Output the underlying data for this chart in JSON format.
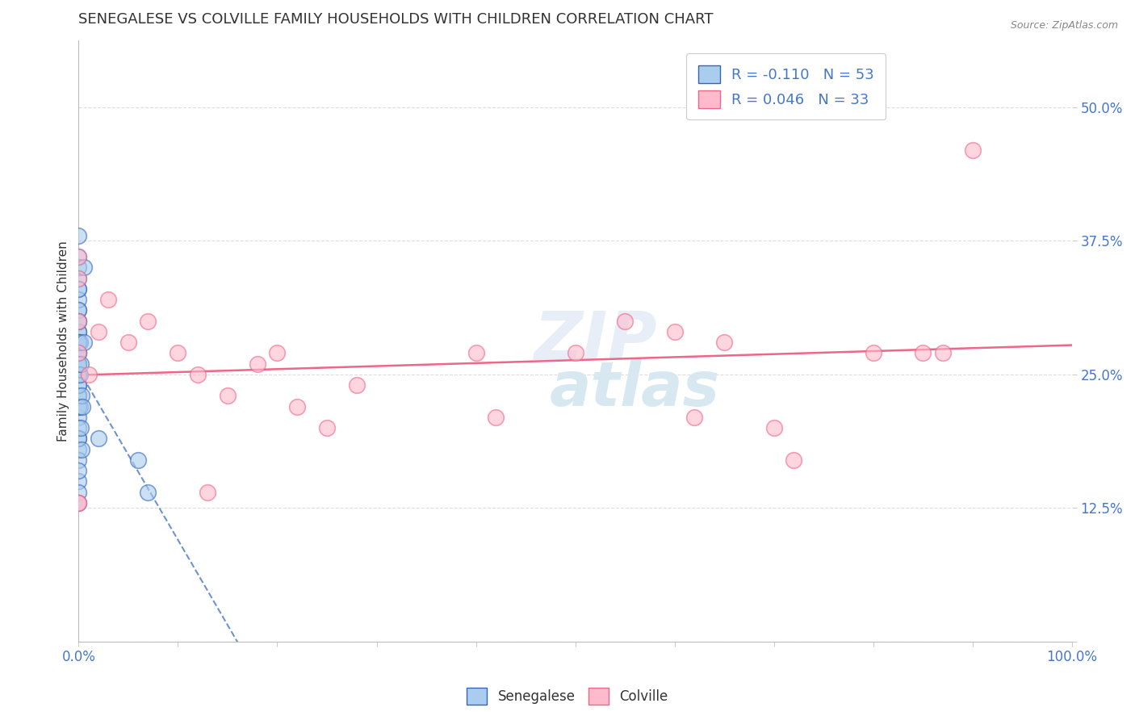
{
  "title": "SENEGALESE VS COLVILLE FAMILY HOUSEHOLDS WITH CHILDREN CORRELATION CHART",
  "source_text": "Source: ZipAtlas.com",
  "ylabel": "Family Households with Children",
  "xlim": [
    0.0,
    1.0
  ],
  "ylim": [
    0.0,
    0.5625
  ],
  "yticks": [
    0.0,
    0.125,
    0.25,
    0.375,
    0.5
  ],
  "ytick_labels": [
    "",
    "12.5%",
    "25.0%",
    "37.5%",
    "50.0%"
  ],
  "legend_entry1": "R = -0.110   N = 53",
  "legend_entry2": "R = 0.046   N = 33",
  "legend_label1": "Senegalese",
  "legend_label2": "Colville",
  "color_senegalese": "#AACCEE",
  "color_colville": "#FFBBCC",
  "trendline_senegalese_color": "#3366BB",
  "trendline_colville_color": "#EE6688",
  "background_color": "#FFFFFF",
  "grid_color": "#DDDDDD",
  "title_fontsize": 13,
  "axis_label_fontsize": 11,
  "tick_fontsize": 12,
  "senegalese_x": [
    0.0,
    0.0,
    0.0,
    0.0,
    0.0,
    0.0,
    0.0,
    0.0,
    0.0,
    0.0,
    0.0,
    0.0,
    0.0,
    0.0,
    0.0,
    0.0,
    0.0,
    0.0,
    0.0,
    0.0,
    0.0,
    0.0,
    0.0,
    0.0,
    0.0,
    0.0,
    0.0,
    0.0,
    0.0,
    0.0,
    0.0,
    0.0,
    0.0,
    0.0,
    0.0,
    0.0,
    0.0,
    0.0,
    0.0,
    0.0,
    0.001,
    0.001,
    0.001,
    0.002,
    0.002,
    0.003,
    0.003,
    0.004,
    0.005,
    0.005,
    0.02,
    0.06,
    0.07
  ],
  "senegalese_y": [
    0.29,
    0.31,
    0.27,
    0.34,
    0.36,
    0.33,
    0.28,
    0.26,
    0.32,
    0.3,
    0.25,
    0.23,
    0.35,
    0.38,
    0.29,
    0.27,
    0.24,
    0.22,
    0.21,
    0.2,
    0.18,
    0.17,
    0.15,
    0.14,
    0.26,
    0.23,
    0.19,
    0.16,
    0.13,
    0.28,
    0.25,
    0.22,
    0.19,
    0.28,
    0.31,
    0.27,
    0.24,
    0.3,
    0.33,
    0.26,
    0.25,
    0.22,
    0.28,
    0.26,
    0.2,
    0.23,
    0.18,
    0.22,
    0.35,
    0.28,
    0.19,
    0.17,
    0.14
  ],
  "colville_x": [
    0.0,
    0.0,
    0.0,
    0.0,
    0.0,
    0.0,
    0.01,
    0.02,
    0.03,
    0.05,
    0.07,
    0.1,
    0.12,
    0.13,
    0.15,
    0.18,
    0.2,
    0.22,
    0.25,
    0.28,
    0.4,
    0.42,
    0.5,
    0.55,
    0.6,
    0.62,
    0.65,
    0.7,
    0.72,
    0.8,
    0.85,
    0.87,
    0.9
  ],
  "colville_y": [
    0.3,
    0.27,
    0.36,
    0.34,
    0.13,
    0.13,
    0.25,
    0.29,
    0.32,
    0.28,
    0.3,
    0.27,
    0.25,
    0.14,
    0.23,
    0.26,
    0.27,
    0.22,
    0.2,
    0.24,
    0.27,
    0.21,
    0.27,
    0.3,
    0.29,
    0.21,
    0.28,
    0.2,
    0.17,
    0.27,
    0.27,
    0.27,
    0.46
  ]
}
